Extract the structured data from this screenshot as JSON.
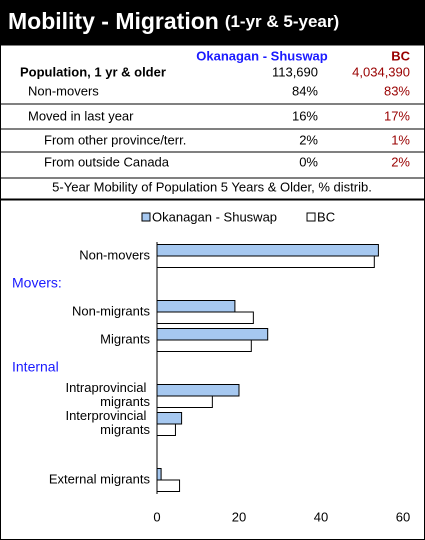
{
  "header": {
    "title": "Mobility - Migration",
    "subtitle": "(1-yr & 5-year)"
  },
  "table": {
    "columns": [
      "Okanagan - Shuswap",
      "BC"
    ],
    "rows": [
      [
        "Population, 1 yr & older",
        "113,690",
        "4,034,390"
      ],
      [
        "Non-movers",
        "84%",
        "83%"
      ],
      [
        "Moved in last year",
        "16%",
        "17%"
      ],
      [
        "From other province/terr.",
        "2%",
        "1%"
      ],
      [
        "From outside Canada",
        "0%",
        "2%"
      ]
    ]
  },
  "chart_data": {
    "type": "hbar",
    "title": "5-Year Mobility of Population 5 Years & Older, % distrib.",
    "categories": [
      "Non-movers",
      "Movers:",
      "Non-migrants",
      "Migrants",
      "Internal",
      "Intraprovincial migrants",
      "Interprovincial migrants",
      null,
      "External migrants"
    ],
    "series": [
      {
        "name": "Okanagan - Shuswap",
        "color": "#a6c8f0",
        "values": [
          54,
          null,
          19,
          27,
          null,
          20,
          6,
          null,
          1
        ]
      },
      {
        "name": "BC",
        "color": "#ffffff",
        "values": [
          53,
          null,
          23.5,
          23,
          null,
          13.5,
          4.5,
          null,
          5.5
        ]
      }
    ],
    "xlim": [
      0,
      60
    ],
    "xticks": [
      0,
      20,
      40,
      60
    ],
    "heading_color": "#1a1aff",
    "grid": false
  }
}
